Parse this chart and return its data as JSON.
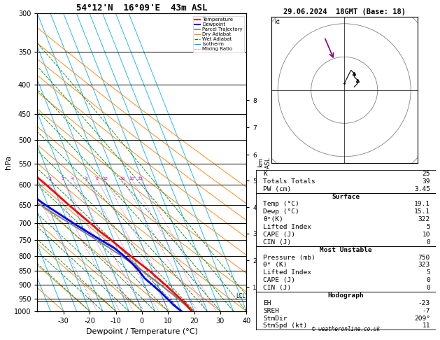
{
  "title_left": "54°12'N  16°09'E  43m ASL",
  "title_right": "29.06.2024  18GMT (Base: 18)",
  "xlabel": "Dewpoint / Temperature (°C)",
  "ylabel_left": "hPa",
  "bg_color": "#ffffff",
  "pressure_levels": [
    300,
    350,
    400,
    450,
    500,
    550,
    600,
    650,
    700,
    750,
    800,
    850,
    900,
    950,
    1000
  ],
  "isotherm_temps": [
    -40,
    -35,
    -30,
    -25,
    -20,
    -15,
    -10,
    -5,
    0,
    5,
    10,
    15,
    20,
    25,
    30,
    35,
    40
  ],
  "skew_factor": 45,
  "x_min": -40,
  "x_max": 40,
  "temperature_profile": {
    "pressure": [
      1000,
      975,
      950,
      925,
      900,
      875,
      850,
      825,
      800,
      775,
      750,
      725,
      700,
      650,
      600,
      550,
      500,
      450,
      400,
      350,
      300
    ],
    "temp": [
      19.1,
      18.0,
      16.5,
      14.8,
      13.0,
      11.0,
      9.0,
      6.5,
      4.0,
      1.5,
      -1.0,
      -4.0,
      -6.5,
      -12.0,
      -17.5,
      -24.0,
      -30.5,
      -38.0,
      -46.5,
      -56.0,
      -48.0
    ]
  },
  "dewpoint_profile": {
    "pressure": [
      1000,
      975,
      950,
      925,
      900,
      875,
      850,
      825,
      800,
      775,
      750,
      725,
      700,
      650,
      600,
      550,
      500,
      450,
      400,
      350,
      300
    ],
    "temp": [
      15.1,
      13.0,
      11.5,
      10.0,
      8.0,
      6.0,
      5.0,
      3.5,
      1.5,
      -1.0,
      -5.0,
      -9.0,
      -13.0,
      -21.0,
      -28.5,
      -37.0,
      -44.0,
      -50.0,
      -57.0,
      -65.0,
      -62.0
    ]
  },
  "parcel_profile": {
    "pressure": [
      1000,
      975,
      950,
      925,
      900,
      875,
      850,
      825,
      800,
      775,
      750,
      700,
      650,
      600,
      550,
      500,
      450,
      400,
      350,
      300
    ],
    "temp": [
      19.1,
      17.5,
      15.6,
      13.5,
      11.2,
      8.8,
      6.2,
      3.5,
      0.5,
      -2.8,
      -6.5,
      -14.5,
      -23.0,
      -32.0,
      -41.5,
      -51.5,
      -62.0,
      -54.0,
      -51.5,
      -49.5
    ]
  },
  "temp_color": "#ff0000",
  "dewp_color": "#0000ff",
  "parcel_color": "#808080",
  "dry_adiabat_color": "#ff8000",
  "wet_adiabat_color": "#008800",
  "isotherm_color": "#00aaff",
  "mixing_ratio_color": "#cc00cc",
  "lcl_pressure": 960,
  "km_ticks": [
    1,
    2,
    3,
    4,
    5,
    6,
    7,
    8
  ],
  "km_pressures": [
    907,
    814,
    730,
    657,
    590,
    531,
    476,
    426
  ],
  "mixing_ratio_lines": [
    1,
    2,
    3,
    4,
    6,
    8,
    10,
    16,
    20,
    25
  ],
  "stats": {
    "K": 25,
    "Totals_Totals": 39,
    "PW_cm": 3.45,
    "Surface_Temp": 19.1,
    "Surface_Dewp": 15.1,
    "Surface_theta_e": 322,
    "Surface_LI": 5,
    "Surface_CAPE": 10,
    "Surface_CIN": 0,
    "MU_Pressure": 750,
    "MU_theta_e": 323,
    "MU_LI": 5,
    "MU_CAPE": 0,
    "MU_CIN": 0,
    "EH": -23,
    "SREH": -7,
    "StmDir": 209,
    "StmSpd": 11
  },
  "copyright": "© weatheronline.co.uk"
}
